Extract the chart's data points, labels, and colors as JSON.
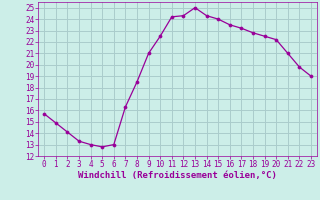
{
  "hours": [
    0,
    1,
    2,
    3,
    4,
    5,
    6,
    7,
    8,
    9,
    10,
    11,
    12,
    13,
    14,
    15,
    16,
    17,
    18,
    19,
    20,
    21,
    22,
    23
  ],
  "values": [
    15.7,
    14.9,
    14.1,
    13.3,
    13.0,
    12.8,
    13.0,
    16.3,
    18.5,
    21.0,
    22.5,
    24.2,
    24.3,
    25.0,
    24.3,
    24.0,
    23.5,
    23.2,
    22.8,
    22.5,
    22.2,
    21.0,
    19.8,
    19.0
  ],
  "line_color": "#990099",
  "marker_color": "#990099",
  "bg_color": "#cceee8",
  "grid_color": "#aacccc",
  "xlabel": "Windchill (Refroidissement éolien,°C)",
  "xlabel_color": "#990099",
  "tick_color": "#990099",
  "ylim": [
    12,
    25.5
  ],
  "yticks": [
    12,
    13,
    14,
    15,
    16,
    17,
    18,
    19,
    20,
    21,
    22,
    23,
    24,
    25
  ],
  "xlim": [
    -0.5,
    23.5
  ],
  "xticks": [
    0,
    1,
    2,
    3,
    4,
    5,
    6,
    7,
    8,
    9,
    10,
    11,
    12,
    13,
    14,
    15,
    16,
    17,
    18,
    19,
    20,
    21,
    22,
    23
  ],
  "tick_fontsize": 5.5,
  "xlabel_fontsize": 6.5,
  "linewidth": 0.9,
  "markersize": 2.2
}
